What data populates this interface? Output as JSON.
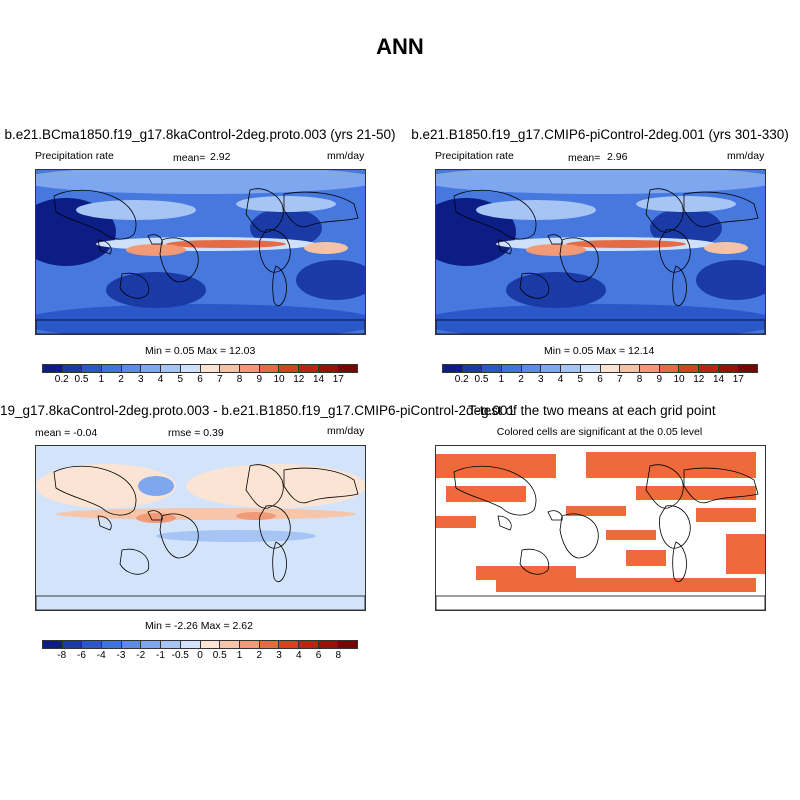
{
  "page": {
    "title": "ANN"
  },
  "panels": {
    "p1": {
      "title": "b.e21.BCma1850.f19_g17.8kaControl-2deg.proto.003 (yrs 21-50)",
      "variable": "Precipitation rate",
      "mean_label": "mean=",
      "mean_value": "2.92",
      "units": "mm/day",
      "minmax": "Min =  0.05 Max =  12.03"
    },
    "p2": {
      "title": "b.e21.B1850.f19_g17.CMIP6-piControl-2deg.001 (yrs 301-330)",
      "variable": "Precipitation rate",
      "mean_label": "mean=",
      "mean_value": "2.96",
      "units": "mm/day",
      "minmax": "Min =  0.05 Max =  12.14"
    },
    "p3": {
      "title": "19_g17.8kaControl-2deg.proto.003 - b.e21.B1850.f19_g17.CMIP6-piControl-2deg.001",
      "mean_text": "mean =  -0.04",
      "rmse_text": "rmse =   0.39",
      "units": "mm/day",
      "minmax": "Min =  -2.26 Max =  2.62"
    },
    "p4": {
      "title": "T-test of the two means at each grid point",
      "subtitle": "Colored cells are significant at the 0.05 level"
    }
  },
  "colorbars": {
    "precip": {
      "labels": [
        "0.2",
        "0.5",
        "1",
        "2",
        "3",
        "4",
        "5",
        "6",
        "7",
        "8",
        "9",
        "10",
        "12",
        "14",
        "17"
      ],
      "colors": [
        "#0c1e86",
        "#1a3aa6",
        "#2a58c8",
        "#3d74de",
        "#5a8ce8",
        "#7ea7ef",
        "#a6c4f4",
        "#cfe0fa",
        "#f9e2d2",
        "#f6c2a6",
        "#f09a78",
        "#e36b46",
        "#d4431e",
        "#ba2410",
        "#981208",
        "#740704"
      ]
    },
    "diff": {
      "labels": [
        "-8",
        "-6",
        "-4",
        "-3",
        "-2",
        "-1",
        "-0.5",
        "0",
        "0.5",
        "1",
        "2",
        "3",
        "4",
        "6",
        "8"
      ],
      "colors": [
        "#0c1e86",
        "#1a3aa6",
        "#2a58c8",
        "#3d74de",
        "#5a8ce8",
        "#7ea7ef",
        "#a6c4f4",
        "#d3e4fa",
        "#fbe4d4",
        "#f7c6aa",
        "#f09a78",
        "#e36b46",
        "#d4431e",
        "#ba2410",
        "#981208",
        "#740704"
      ]
    }
  },
  "colors": {
    "ocean_dark": "#1a3aa6",
    "significant": "#ef6a3a",
    "neutral_diff": "#d6e6fa"
  },
  "chart_data": [
    {
      "type": "heatmap",
      "title": "b.e21.BCma1850.f19_g17.8kaControl-2deg.proto.003 (yrs 21-50)",
      "variable": "Precipitation rate",
      "units": "mm/day",
      "mean": 2.92,
      "min": 0.05,
      "max": 12.03,
      "levels": [
        0.2,
        0.5,
        1,
        2,
        3,
        4,
        5,
        6,
        7,
        8,
        9,
        10,
        12,
        14,
        17
      ]
    },
    {
      "type": "heatmap",
      "title": "b.e21.B1850.f19_g17.CMIP6-piControl-2deg.001 (yrs 301-330)",
      "variable": "Precipitation rate",
      "units": "mm/day",
      "mean": 2.96,
      "min": 0.05,
      "max": 12.14,
      "levels": [
        0.2,
        0.5,
        1,
        2,
        3,
        4,
        5,
        6,
        7,
        8,
        9,
        10,
        12,
        14,
        17
      ]
    },
    {
      "type": "heatmap",
      "title": "19_g17.8kaControl-2deg.proto.003 - b.e21.B1850.f19_g17.CMIP6-piControl-2deg.001",
      "units": "mm/day",
      "mean": -0.04,
      "rmse": 0.39,
      "min": -2.26,
      "max": 2.62,
      "levels": [
        -8,
        -6,
        -4,
        -3,
        -2,
        -1,
        -0.5,
        0,
        0.5,
        1,
        2,
        3,
        4,
        6,
        8
      ]
    },
    {
      "type": "heatmap",
      "title": "T-test of the two means at each grid point",
      "subtitle": "Colored cells are significant at the 0.05 level"
    }
  ]
}
